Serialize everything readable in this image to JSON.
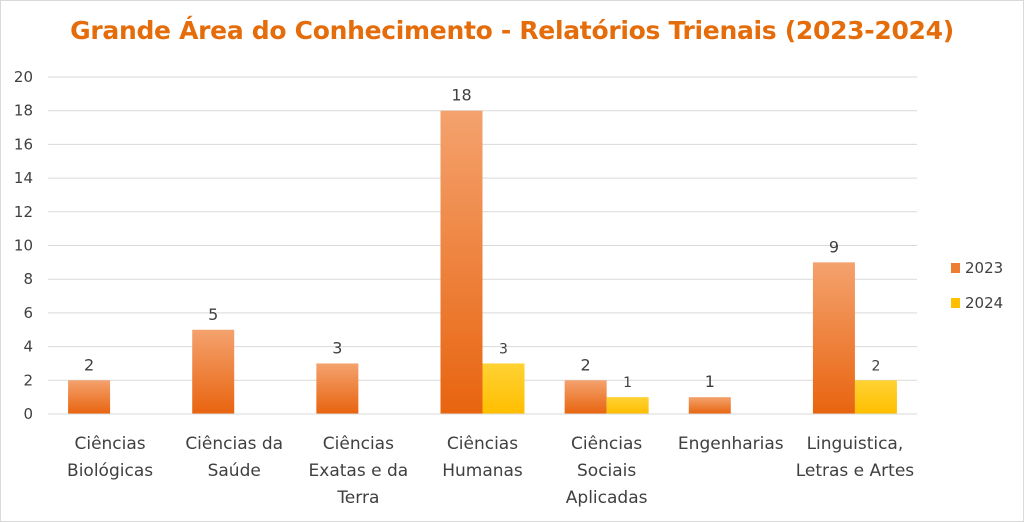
{
  "chart_data": {
    "type": "bar",
    "title": "Grande Área do Conhecimento - Relatórios Trienais (2023-2024)",
    "categories": [
      [
        "Ciências",
        "Biológicas"
      ],
      [
        "Ciências da",
        "Saúde"
      ],
      [
        "Ciências",
        "Exatas e da",
        "Terra"
      ],
      [
        "Ciências",
        "Humanas"
      ],
      [
        "Ciências",
        "Sociais",
        "Aplicadas"
      ],
      [
        "Engenharias"
      ],
      [
        "Linguistica,",
        "Letras e Artes"
      ]
    ],
    "series": [
      {
        "name": "2023",
        "values": [
          2,
          5,
          3,
          18,
          2,
          1,
          9
        ],
        "color": "#ed7d31",
        "color_light": "#f4a26e",
        "color_dark": "#e8640f"
      },
      {
        "name": "2024",
        "values": [
          null,
          null,
          null,
          3,
          1,
          null,
          2
        ],
        "color": "#ffc000",
        "color_light": "#ffd233",
        "color_dark": "#ffbe00"
      }
    ],
    "ylim": [
      0,
      20
    ],
    "yticks": [
      0,
      2,
      4,
      6,
      8,
      10,
      12,
      14,
      16,
      18,
      20
    ],
    "grid": true,
    "legend_position": "right",
    "data_labels": true
  }
}
